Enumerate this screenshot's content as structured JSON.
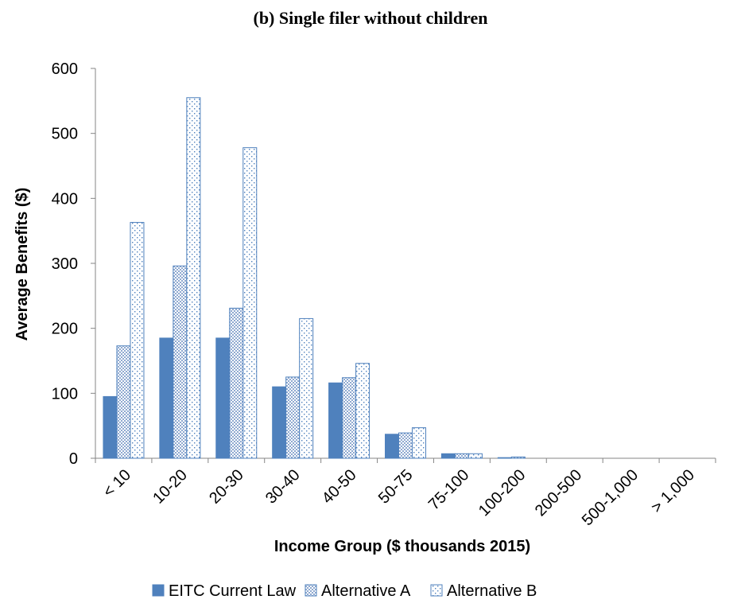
{
  "chart_data": {
    "type": "bar",
    "title": "(b)  Single filer without children",
    "xlabel": "Income Group ($ thousands 2015)",
    "ylabel": "Average Benefits ($)",
    "ylim": [
      0,
      600
    ],
    "yticks": [
      0,
      100,
      200,
      300,
      400,
      500,
      600
    ],
    "categories": [
      "< 10",
      "10-20",
      "20-30",
      "30-40",
      "40-50",
      "50-75",
      "75-100",
      "100-200",
      "200-500",
      "500-1,000",
      "> 1,000"
    ],
    "series": [
      {
        "name": "EITC Current Law",
        "values": [
          95,
          185,
          185,
          110,
          116,
          37,
          7,
          1,
          0,
          0,
          0
        ]
      },
      {
        "name": "Alternative A",
        "values": [
          173,
          296,
          231,
          125,
          124,
          39,
          7,
          2,
          0,
          0,
          0
        ]
      },
      {
        "name": "Alternative B",
        "values": [
          363,
          555,
          478,
          215,
          146,
          47,
          7,
          0,
          0,
          0,
          0
        ]
      }
    ],
    "legend_position": "bottom",
    "grid": false,
    "colors": {
      "current_law": "#4F81BD",
      "outline": "#4F81BD"
    }
  }
}
